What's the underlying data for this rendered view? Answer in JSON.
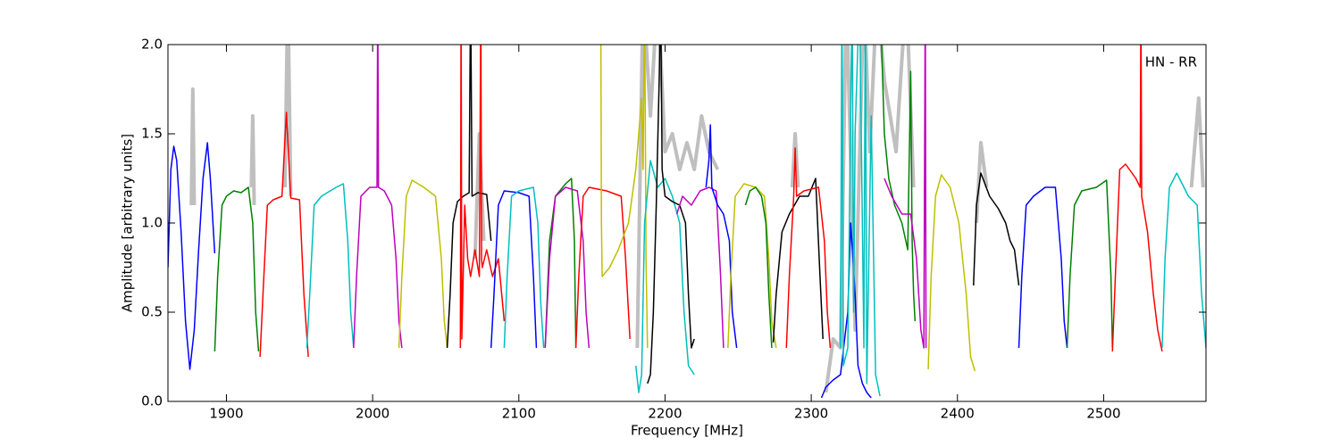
{
  "chart_data": {
    "type": "line",
    "xlabel": "Frequency [MHz]",
    "ylabel": "Amplitude [arbitrary units]",
    "annotation": "HN - RR",
    "xlim": [
      1860,
      2570
    ],
    "ylim": [
      0,
      2
    ],
    "xticks": [
      1900,
      2000,
      2100,
      2200,
      2300,
      2400,
      2500
    ],
    "yticks": [
      {
        "value": 0,
        "label": "0.0"
      },
      {
        "value": 0.5,
        "label": "0.5"
      },
      {
        "value": 1,
        "label": "1.0"
      },
      {
        "value": 1.5,
        "label": "1.5"
      },
      {
        "value": 2,
        "label": "2.0"
      }
    ],
    "series": [
      {
        "color": "#bfbfbf",
        "x": [
          1876,
          1877,
          1878,
          null,
          1917,
          1918,
          1919,
          null,
          1940,
          1942,
          1944,
          null,
          2070,
          2073,
          2076,
          null,
          2181,
          2185,
          2190,
          2195,
          2200,
          2205,
          2210,
          2215,
          2220,
          2225,
          2230,
          2236,
          null,
          2287,
          2289,
          2291,
          null,
          2310,
          2315,
          2320,
          2324,
          2330,
          2336,
          2340,
          2345,
          2350,
          2358,
          2365,
          2370,
          null,
          2413,
          2416,
          2420,
          null,
          2560,
          2565,
          2568
        ],
        "values": [
          1.1,
          1.75,
          1.1,
          null,
          1.2,
          1.6,
          1.1,
          null,
          1.2,
          2.3,
          1.15,
          null,
          0.8,
          1.5,
          0.9,
          null,
          0.3,
          2.3,
          1.6,
          2.3,
          1.4,
          1.5,
          1.3,
          1.45,
          1.3,
          1.6,
          1.4,
          1.3,
          null,
          1.2,
          1.5,
          1.2,
          null,
          0.05,
          0.35,
          0.3,
          2.3,
          0.4,
          2.3,
          1.4,
          2.3,
          1.8,
          1.4,
          2.3,
          1.2,
          null,
          1.0,
          1.45,
          1.2,
          null,
          1.2,
          1.7,
          1.2
        ]
      },
      {
        "color": "#0000ff",
        "x": [
          1860,
          1862,
          1864,
          1866,
          1869,
          1872,
          1875,
          1878,
          1881,
          1884,
          1887,
          1889,
          1892
        ],
        "values": [
          0.75,
          1.3,
          1.43,
          1.35,
          0.95,
          0.45,
          0.18,
          0.4,
          0.85,
          1.25,
          1.45,
          1.25,
          0.83
        ]
      },
      {
        "color": "#008000",
        "x": [
          1892,
          1894,
          1897,
          1900,
          1905,
          1910,
          1915,
          1918,
          1920,
          1922
        ],
        "values": [
          0.28,
          0.7,
          1.1,
          1.15,
          1.18,
          1.17,
          1.2,
          1.0,
          0.5,
          0.28
        ]
      },
      {
        "color": "#ff0000",
        "x": [
          1923,
          1925,
          1928,
          1932,
          1938,
          1941,
          1944,
          1950,
          1953,
          1956
        ],
        "values": [
          0.25,
          0.6,
          1.1,
          1.13,
          1.15,
          1.62,
          1.14,
          1.13,
          0.6,
          0.25
        ]
      },
      {
        "color": "#00bfbf",
        "x": [
          1955,
          1957,
          1960,
          1965,
          1975,
          1980,
          1983,
          1985,
          1987
        ],
        "values": [
          0.3,
          0.6,
          1.1,
          1.15,
          1.2,
          1.22,
          0.9,
          0.5,
          0.3
        ]
      },
      {
        "color": "#bf00bf",
        "x": [
          1987,
          1989,
          1992,
          1998,
          2003,
          2003.5,
          2004,
          2008,
          2013,
          2016,
          2018,
          2020
        ],
        "values": [
          0.3,
          0.7,
          1.15,
          1.2,
          1.2,
          2.3,
          1.2,
          1.18,
          1.1,
          0.8,
          0.45,
          0.3
        ]
      },
      {
        "color": "#bfbf00",
        "x": [
          2018,
          2020,
          2023,
          2027,
          2035,
          2043,
          2047,
          2049,
          2051
        ],
        "values": [
          0.3,
          0.7,
          1.15,
          1.24,
          1.2,
          1.15,
          0.8,
          0.45,
          0.3
        ]
      },
      {
        "color": "#000000",
        "x": [
          2051,
          2053,
          2055,
          2058,
          2062,
          2066,
          2067,
          2068,
          2072,
          2078,
          2081
        ],
        "values": [
          0.3,
          0.6,
          1.0,
          1.12,
          1.15,
          1.17,
          2.3,
          1.15,
          1.17,
          1.16,
          0.9
        ]
      },
      {
        "color": "#ff0000",
        "x": [
          2060,
          2060.5,
          2061,
          2063,
          2065,
          2067,
          2070,
          2073,
          2074,
          2074.5,
          2075,
          2078,
          2082,
          2086,
          2090
        ],
        "values": [
          0.3,
          2.3,
          0.35,
          1.1,
          0.8,
          0.7,
          0.85,
          0.7,
          2.3,
          0.8,
          0.75,
          0.85,
          0.7,
          0.8,
          0.45
        ]
      },
      {
        "color": "#0000ff",
        "x": [
          2081,
          2083,
          2086,
          2090,
          2100,
          2107,
          2110,
          2112
        ],
        "values": [
          0.3,
          0.6,
          1.1,
          1.18,
          1.17,
          1.15,
          0.7,
          0.3
        ]
      },
      {
        "color": "#00bfbf",
        "x": [
          2090,
          2092,
          2095,
          2100,
          2110,
          2113,
          2115,
          2117
        ],
        "values": [
          0.3,
          0.7,
          1.15,
          1.18,
          1.2,
          1.0,
          0.55,
          0.3
        ]
      },
      {
        "color": "#008000",
        "x": [
          2118,
          2121,
          2125,
          2132,
          2136,
          2138,
          2139
        ],
        "values": [
          0.3,
          0.9,
          1.15,
          1.22,
          1.25,
          0.9,
          0.3
        ]
      },
      {
        "color": "#bf00bf",
        "x": [
          2118,
          2121,
          2125,
          2132,
          2140,
          2144,
          2146,
          2148
        ],
        "values": [
          0.3,
          0.8,
          1.15,
          1.2,
          1.18,
          0.9,
          0.5,
          0.3
        ]
      },
      {
        "color": "#ff0000",
        "x": [
          2139,
          2141,
          2144,
          2148,
          2160,
          2170,
          2173,
          2175,
          2176
        ],
        "values": [
          0.3,
          0.7,
          1.15,
          1.2,
          1.18,
          1.15,
          0.8,
          0.5,
          0.35
        ]
      },
      {
        "color": "#bfbf00",
        "x": [
          2156,
          2156.5,
          2157,
          2162,
          2168,
          2175,
          2180,
          2184,
          2185,
          2186,
          2187,
          2188
        ],
        "values": [
          2.3,
          1.0,
          0.7,
          0.75,
          0.85,
          1.0,
          1.3,
          1.7,
          1.3,
          2.3,
          0.8,
          0.3
        ]
      },
      {
        "color": "#00bfbf",
        "x": [
          2180,
          2182,
          2184,
          2186,
          2190,
          2195,
          2200,
          2205,
          2210,
          2213,
          2216,
          2220
        ],
        "values": [
          0.2,
          0.05,
          0.15,
          1.0,
          1.35,
          1.2,
          1.25,
          1.15,
          1.0,
          0.5,
          0.2,
          0.15
        ]
      },
      {
        "color": "#000000",
        "x": [
          2188,
          2190,
          2192,
          2194,
          2196,
          2197,
          2198,
          2200,
          2205,
          2210,
          2214,
          2216,
          2218,
          2220
        ],
        "values": [
          0.1,
          0.15,
          0.5,
          1.1,
          1.8,
          2.3,
          1.3,
          1.15,
          1.12,
          1.1,
          1.0,
          0.6,
          0.3,
          0.35
        ]
      },
      {
        "color": "#bf00bf",
        "x": [
          2208,
          2212,
          2218,
          2224,
          2230,
          2235,
          2238,
          2240
        ],
        "values": [
          1.05,
          1.15,
          1.1,
          1.18,
          1.2,
          1.18,
          0.7,
          0.3
        ]
      },
      {
        "color": "#0000ff",
        "x": [
          2228,
          2230,
          2231,
          2232,
          2236,
          2240,
          2244,
          2246,
          2249
        ],
        "values": [
          1.2,
          1.35,
          1.55,
          1.2,
          1.1,
          1.05,
          0.9,
          0.5,
          0.3
        ]
      },
      {
        "color": "#bfbf00",
        "x": [
          2243,
          2245,
          2248,
          2254,
          2262,
          2268,
          2271,
          2273,
          2276
        ],
        "values": [
          0.3,
          0.7,
          1.15,
          1.22,
          1.2,
          1.15,
          0.8,
          0.45,
          0.3
        ]
      },
      {
        "color": "#008000",
        "x": [
          2255,
          2258,
          2262,
          2266,
          2269,
          2271,
          2273
        ],
        "values": [
          1.1,
          1.18,
          1.2,
          1.15,
          1.0,
          0.6,
          0.3
        ]
      },
      {
        "color": "#000000",
        "x": [
          2274,
          2276,
          2280,
          2285,
          2292,
          2298,
          2303,
          2306,
          2308
        ],
        "values": [
          0.33,
          0.6,
          0.95,
          1.05,
          1.15,
          1.15,
          1.25,
          0.7,
          0.35
        ]
      },
      {
        "color": "#ff0000",
        "x": [
          2283,
          2285,
          2288,
          2289,
          2290,
          2295,
          2305,
          2309,
          2311,
          2313
        ],
        "values": [
          0.3,
          0.7,
          1.15,
          1.42,
          1.15,
          1.18,
          1.2,
          0.9,
          0.5,
          0.3
        ]
      },
      {
        "color": "#0000ff",
        "x": [
          2307,
          2310,
          2315,
          2320,
          2325,
          2327,
          2330,
          2332,
          2335,
          2338,
          2341
        ],
        "values": [
          0.02,
          0.08,
          0.12,
          0.15,
          0.5,
          1.0,
          0.6,
          0.2,
          0.1,
          0.05,
          0.02
        ]
      },
      {
        "color": "#00bfbf",
        "x": [
          2320,
          2321,
          2322,
          2325,
          2328,
          2329,
          2330,
          2333,
          2336,
          2337,
          2338,
          2341,
          2344,
          2347
        ],
        "values": [
          0.3,
          2.3,
          0.2,
          0.3,
          2.3,
          0.5,
          1.5,
          2.3,
          0.3,
          2.3,
          0.1,
          1.6,
          0.15,
          0.03
        ]
      },
      {
        "color": "#008000",
        "x": [
          2347,
          2350,
          2353,
          2357,
          2362,
          2366,
          2368,
          2369,
          2370,
          2371
        ],
        "values": [
          2.3,
          1.5,
          1.25,
          1.1,
          1.0,
          0.85,
          1.85,
          0.9,
          0.6,
          0.45
        ]
      },
      {
        "color": "#bf00bf",
        "x": [
          2350,
          2355,
          2362,
          2368,
          2372,
          2375,
          2377,
          2378,
          2378.5
        ],
        "values": [
          1.25,
          1.15,
          1.05,
          1.05,
          0.8,
          0.4,
          0.3,
          2.3,
          0.3
        ]
      },
      {
        "color": "#bfbf00",
        "x": [
          2380,
          2382,
          2385,
          2389,
          2395,
          2401,
          2406,
          2409,
          2412
        ],
        "values": [
          0.18,
          0.7,
          1.15,
          1.27,
          1.2,
          1.0,
          0.6,
          0.25,
          0.17
        ]
      },
      {
        "color": "#000000",
        "x": [
          2411,
          2413,
          2416,
          2422,
          2428,
          2433,
          2436,
          2439,
          2442
        ],
        "values": [
          0.65,
          1.1,
          1.28,
          1.15,
          1.08,
          1.0,
          0.9,
          0.85,
          0.65
        ]
      },
      {
        "color": "#0000ff",
        "x": [
          2442,
          2444,
          2447,
          2452,
          2460,
          2467,
          2471,
          2473,
          2475
        ],
        "values": [
          0.3,
          0.7,
          1.1,
          1.15,
          1.2,
          1.2,
          0.8,
          0.45,
          0.3
        ]
      },
      {
        "color": "#008000",
        "x": [
          2475,
          2477,
          2480,
          2485,
          2495,
          2502,
          2505,
          2506
        ],
        "values": [
          0.3,
          0.7,
          1.1,
          1.18,
          1.2,
          1.24,
          0.7,
          0.3
        ]
      },
      {
        "color": "#ff0000",
        "x": [
          2506,
          2508,
          2511,
          2515,
          2522,
          2525,
          2525.5,
          2526,
          2530,
          2534,
          2537,
          2540
        ],
        "values": [
          0.28,
          0.7,
          1.3,
          1.33,
          1.25,
          1.2,
          2.3,
          1.15,
          0.95,
          0.6,
          0.4,
          0.28
        ]
      },
      {
        "color": "#00bfbf",
        "x": [
          2540,
          2542,
          2545,
          2550,
          2558,
          2564,
          2567,
          2570
        ],
        "values": [
          0.3,
          0.8,
          1.2,
          1.28,
          1.15,
          1.1,
          0.6,
          0.3
        ]
      }
    ]
  }
}
